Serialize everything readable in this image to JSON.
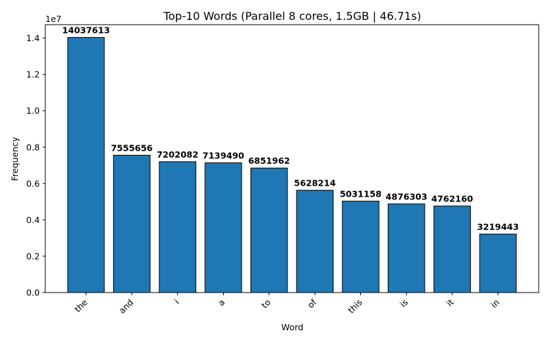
{
  "chart_data": {
    "type": "bar",
    "title": "Top-10 Words (Parallel 8 cores, 1.5GB | 46.71s)",
    "xlabel": "Word",
    "ylabel": "Frequency",
    "y_offset_label": "1e7",
    "categories": [
      "the",
      "and",
      "i",
      "a",
      "to",
      "of",
      "this",
      "is",
      "it",
      "in"
    ],
    "values": [
      14037613,
      7555656,
      7202082,
      7139490,
      6851962,
      5628214,
      5031158,
      4876303,
      4762160,
      3219443
    ],
    "data_labels": [
      "14037613",
      "7555656",
      "7202082",
      "7139490",
      "6851962",
      "5628214",
      "5031158",
      "4876303",
      "4762160",
      "3219443"
    ],
    "ylim": [
      0,
      14739493
    ],
    "y_ticks": [
      0,
      2000000,
      4000000,
      6000000,
      8000000,
      10000000,
      12000000,
      14000000
    ],
    "y_tick_labels": [
      "0.0",
      "0.2",
      "0.4",
      "0.6",
      "0.8",
      "1.0",
      "1.2",
      "1.4"
    ],
    "bar_color": "#1f77b4",
    "bar_edge_color": "#000000",
    "grid": false,
    "x_tick_rotation": "45 degrees"
  }
}
